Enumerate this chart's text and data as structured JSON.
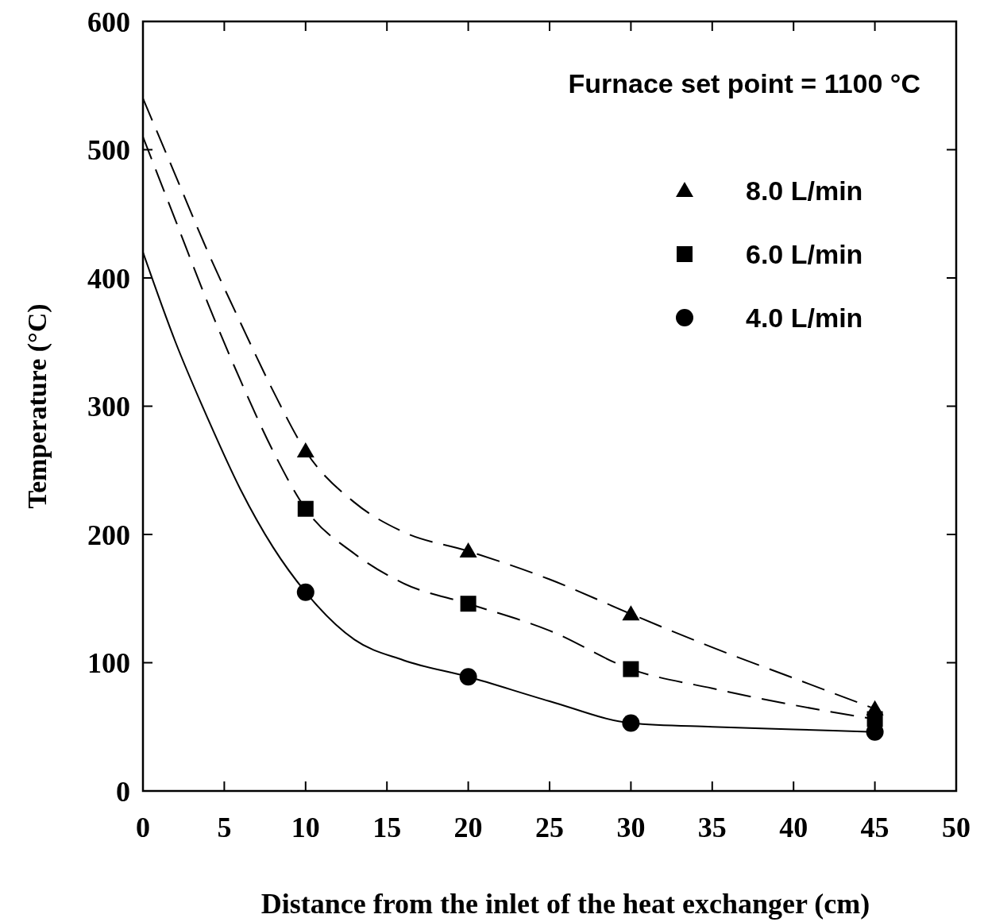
{
  "chart_data": {
    "type": "scatter",
    "xlabel": "Distance from the inlet of the heat exchanger (cm)",
    "ylabel": "Temperature (°C)",
    "annotations": [
      "Furnace set point = 1100 °C"
    ],
    "xlim": [
      0,
      50
    ],
    "ylim": [
      0,
      600
    ],
    "xticks": [
      0,
      5,
      10,
      15,
      20,
      25,
      30,
      35,
      40,
      45,
      50
    ],
    "yticks": [
      0,
      100,
      200,
      300,
      400,
      500,
      600
    ],
    "grid": false,
    "legend": "top right",
    "series": [
      {
        "name": "8.0 L/min",
        "type": "scatter",
        "marker": "triangle",
        "color": "#000000",
        "x": [
          10,
          20,
          30,
          45
        ],
        "values": [
          265,
          187,
          138,
          64
        ]
      },
      {
        "name": "6.0 L/min",
        "type": "scatter",
        "marker": "square",
        "color": "#000000",
        "x": [
          10,
          20,
          30,
          45
        ],
        "values": [
          220,
          146,
          95,
          56
        ]
      },
      {
        "name": "4.0 L/min",
        "type": "scatter",
        "marker": "circle",
        "color": "#000000",
        "x": [
          10,
          20,
          30,
          45
        ],
        "values": [
          155,
          89,
          53,
          46
        ]
      },
      {
        "type": "line",
        "line_style": "dashed",
        "marker": "none",
        "color": "#000000",
        "x": [
          0,
          2,
          4,
          6,
          8,
          10,
          13,
          16,
          20,
          25,
          30,
          35,
          40,
          45
        ],
        "values": [
          540,
          480,
          420,
          365,
          312,
          265,
          225,
          202,
          187,
          165,
          138,
          112,
          88,
          64
        ]
      },
      {
        "type": "line",
        "line_style": "dashed",
        "marker": "none",
        "color": "#000000",
        "x": [
          0,
          2,
          4,
          6,
          8,
          10,
          13,
          16,
          20,
          25,
          30,
          35,
          40,
          45
        ],
        "values": [
          510,
          445,
          380,
          320,
          265,
          220,
          185,
          162,
          146,
          125,
          95,
          80,
          67,
          56
        ]
      },
      {
        "type": "line",
        "line_style": "solid",
        "marker": "none",
        "color": "#000000",
        "x": [
          0,
          2,
          4,
          6,
          8,
          10,
          13,
          16,
          20,
          25,
          30,
          35,
          40,
          45
        ],
        "values": [
          420,
          350,
          290,
          235,
          190,
          155,
          118,
          102,
          89,
          70,
          53,
          50,
          48,
          46
        ]
      }
    ]
  }
}
